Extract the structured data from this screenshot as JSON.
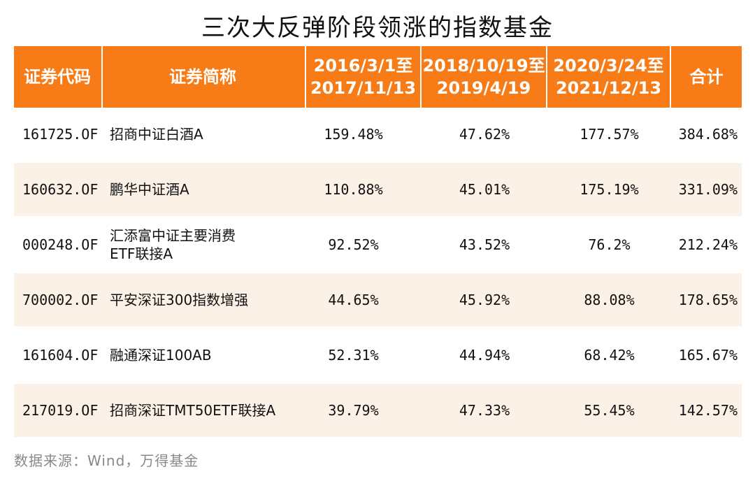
{
  "title": "三次大反弹阶段领涨的指数基金",
  "watermark": "Wind",
  "colors": {
    "header_bg": "#f77b16",
    "stripe_bg": "#fcf1e7"
  },
  "table": {
    "headers": {
      "code": "证券代码",
      "name": "证券简称",
      "p1_line1": "2016/3/1至",
      "p1_line2": "2017/11/13",
      "p2_line1": "2018/10/19至",
      "p2_line2": "2019/4/19",
      "p3_line1": "2020/3/24至",
      "p3_line2": "2021/12/13",
      "total": "合计"
    },
    "rows": [
      {
        "code": "161725.OF",
        "name": "招商中证白酒A",
        "p1": "159.48%",
        "p2": "47.62%",
        "p3": "177.57%",
        "total": "384.68%"
      },
      {
        "code": "160632.OF",
        "name": "鹏华中证酒A",
        "p1": "110.88%",
        "p2": "45.01%",
        "p3": "175.19%",
        "total": "331.09%"
      },
      {
        "code": "000248.OF",
        "name_line1": "汇添富中证主要消费",
        "name_line2": "ETF联接A",
        "p1": "92.52%",
        "p2": "43.52%",
        "p3": "76.2%",
        "total": "212.24%"
      },
      {
        "code": "700002.OF",
        "name": "平安深证300指数增强",
        "p1": "44.65%",
        "p2": "45.92%",
        "p3": "88.08%",
        "total": "178.65%"
      },
      {
        "code": "161604.OF",
        "name": "融通深证100AB",
        "p1": "52.31%",
        "p2": "44.94%",
        "p3": "68.42%",
        "total": "165.67%"
      },
      {
        "code": "217019.OF",
        "name": "招商深证TMT50ETF联接A",
        "p1": "39.79%",
        "p2": "47.33%",
        "p3": "55.45%",
        "total": "142.57%"
      }
    ]
  },
  "source": "数据来源：Wind，万得基金"
}
